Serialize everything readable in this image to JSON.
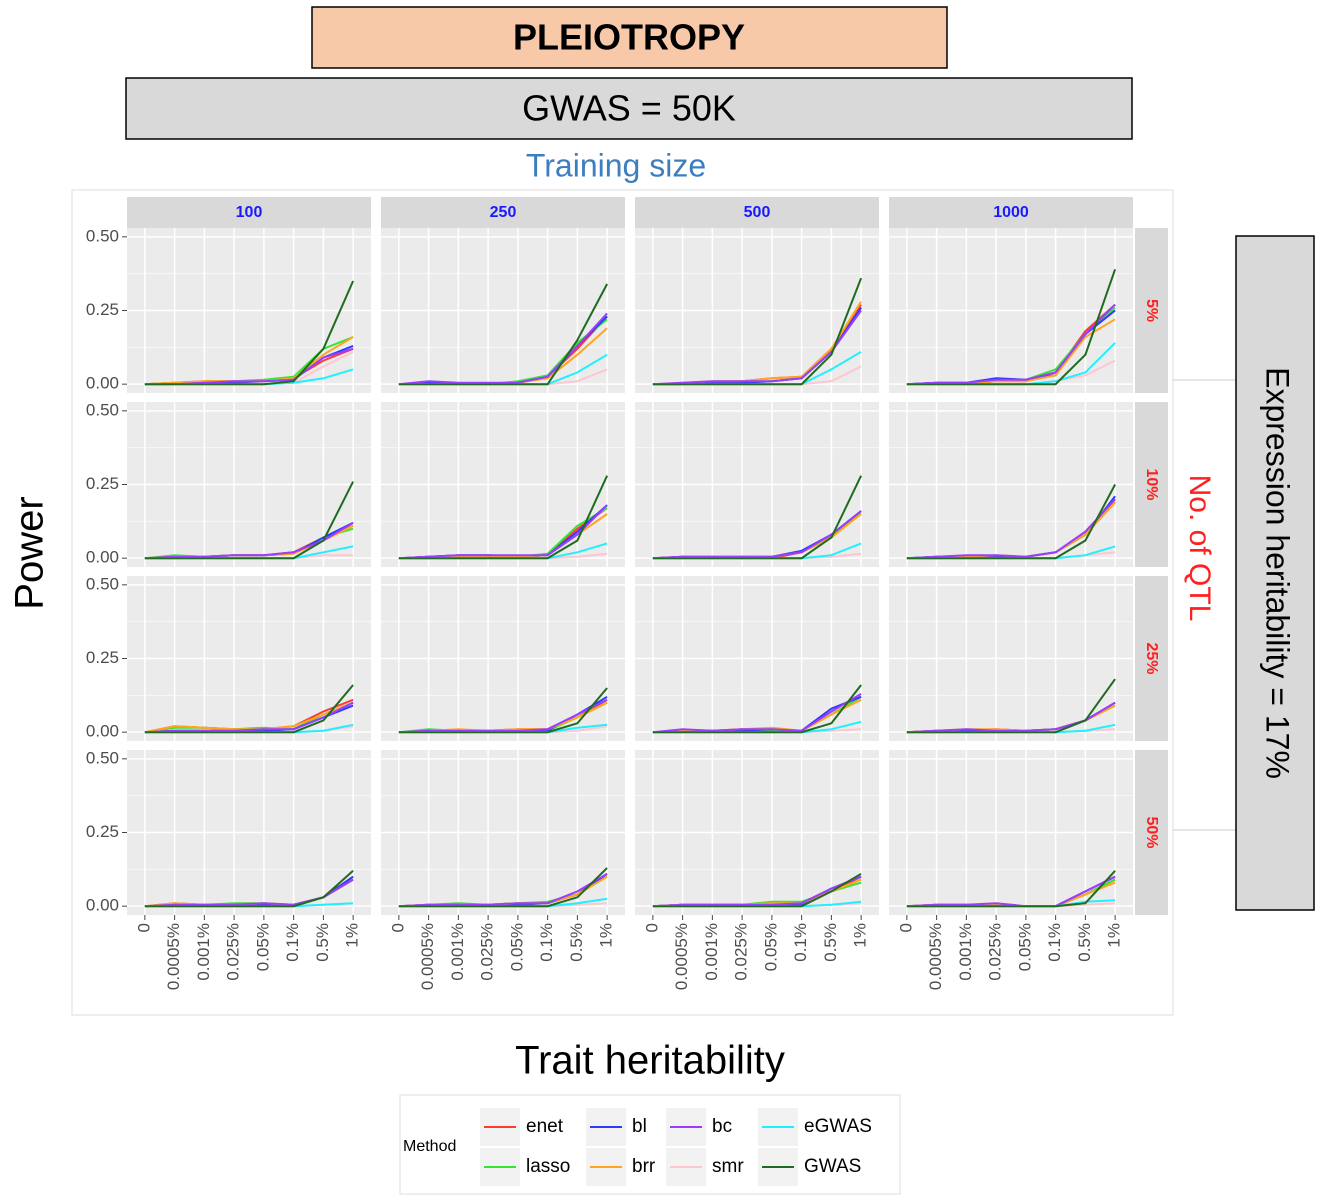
{
  "header": {
    "title": "PLEIOTROPY",
    "subtitle": "GWAS = 50K"
  },
  "chart_data": {
    "type": "line",
    "column_title": "Training size",
    "row_title": "No. of QTL",
    "side_title": "Expression heritability = 17%",
    "y_label": "Power",
    "x_label": "Trait heritability",
    "legend_title": "Method",
    "columns": [
      "100",
      "250",
      "500",
      "1000"
    ],
    "rows": [
      "5%",
      "10%",
      "25%",
      "50%"
    ],
    "categories": [
      "0",
      "0.0005%",
      "0.001%",
      "0.025%",
      "0.05%",
      "0.1%",
      "0.5%",
      "1%"
    ],
    "ylim": [
      -0.03,
      0.53
    ],
    "yticks": [
      {
        "value": 0,
        "label": "0.00"
      },
      {
        "value": 0.25,
        "label": "0.25"
      },
      {
        "value": 0.5,
        "label": "0.50"
      }
    ],
    "grid": true,
    "series": [
      {
        "name": "enet",
        "color": "#ff3b30"
      },
      {
        "name": "lasso",
        "color": "#33e633"
      },
      {
        "name": "bl",
        "color": "#2b3bff"
      },
      {
        "name": "brr",
        "color": "#ffa51f"
      },
      {
        "name": "bc",
        "color": "#9a3dff"
      },
      {
        "name": "smr",
        "color": "#ffc6cf"
      },
      {
        "name": "eGWAS",
        "color": "#1ff0ff"
      },
      {
        "name": "GWAS",
        "color": "#1f6b1f"
      }
    ],
    "panels": [
      [
        [
          0,
          0.005,
          0.01,
          0.01,
          0.01,
          0.02,
          0.08,
          0.12
        ],
        [
          0,
          0.005,
          0.005,
          0.01,
          0.015,
          0.025,
          0.12,
          0.16
        ],
        [
          0,
          0,
          0.005,
          0.005,
          0.01,
          0.015,
          0.09,
          0.13
        ],
        [
          0,
          0.005,
          0.01,
          0.01,
          0.01,
          0.02,
          0.1,
          0.16
        ],
        [
          0,
          0,
          0.005,
          0.01,
          0.01,
          0.015,
          0.09,
          0.12
        ],
        [
          0,
          0,
          0,
          0,
          0,
          0.005,
          0.06,
          0.11
        ],
        [
          0,
          0,
          0,
          0,
          0,
          0.005,
          0.02,
          0.05
        ],
        [
          0,
          0,
          0,
          0,
          0,
          0.01,
          0.12,
          0.35
        ]
      ],
      [
        [
          0,
          0.005,
          0,
          0,
          0.005,
          0.025,
          0.12,
          0.23
        ],
        [
          0,
          0,
          0,
          0,
          0.01,
          0.03,
          0.14,
          0.22
        ],
        [
          0,
          0.005,
          0,
          0,
          0.005,
          0.025,
          0.13,
          0.23
        ],
        [
          0,
          0,
          0,
          0,
          0.005,
          0.02,
          0.1,
          0.19
        ],
        [
          0,
          0.01,
          0.005,
          0.005,
          0.005,
          0.025,
          0.13,
          0.24
        ],
        [
          0,
          0,
          0,
          0,
          0,
          0,
          0.01,
          0.05
        ],
        [
          0,
          0,
          0,
          0,
          0,
          0,
          0.04,
          0.1
        ],
        [
          0,
          0,
          0,
          0,
          0,
          0,
          0.15,
          0.34
        ]
      ],
      [
        [
          0,
          0,
          0.005,
          0.01,
          0.02,
          0.025,
          0.12,
          0.27
        ],
        [
          0,
          0,
          0,
          0.005,
          0.01,
          0.02,
          0.11,
          0.26
        ],
        [
          0,
          0,
          0.005,
          0.005,
          0.01,
          0.02,
          0.11,
          0.26
        ],
        [
          0,
          0.005,
          0.01,
          0.01,
          0.02,
          0.025,
          0.12,
          0.28
        ],
        [
          0,
          0.005,
          0.01,
          0.01,
          0.01,
          0.02,
          0.11,
          0.25
        ],
        [
          0,
          0,
          0,
          0,
          0,
          0,
          0.01,
          0.06
        ],
        [
          0,
          0,
          0,
          0,
          0,
          0,
          0.05,
          0.11
        ],
        [
          0,
          0,
          0,
          0,
          0,
          0,
          0.1,
          0.36
        ]
      ],
      [
        [
          0,
          0,
          0,
          0.01,
          0.01,
          0.04,
          0.18,
          0.27
        ],
        [
          0,
          0.005,
          0.005,
          0.01,
          0.015,
          0.05,
          0.17,
          0.26
        ],
        [
          0,
          0.005,
          0.005,
          0.02,
          0.015,
          0.03,
          0.17,
          0.25
        ],
        [
          0,
          0,
          0.005,
          0.01,
          0.01,
          0.03,
          0.16,
          0.22
        ],
        [
          0,
          0.005,
          0.005,
          0.015,
          0.015,
          0.04,
          0.17,
          0.27
        ],
        [
          0,
          0,
          0,
          0,
          0,
          0.01,
          0.03,
          0.08
        ],
        [
          0,
          0,
          0,
          0,
          0,
          0.01,
          0.04,
          0.14
        ],
        [
          0,
          0,
          0,
          0,
          0,
          0,
          0.1,
          0.39
        ]
      ],
      [
        [
          0,
          0.005,
          0.005,
          0.01,
          0.01,
          0.02,
          0.07,
          0.11
        ],
        [
          0,
          0.01,
          0.005,
          0.01,
          0.01,
          0.015,
          0.07,
          0.1
        ],
        [
          0,
          0,
          0.005,
          0.01,
          0.01,
          0.015,
          0.07,
          0.12
        ],
        [
          0,
          0.005,
          0.005,
          0.01,
          0.01,
          0.015,
          0.06,
          0.11
        ],
        [
          0,
          0.005,
          0.005,
          0.01,
          0.01,
          0.02,
          0.06,
          0.12
        ],
        [
          0,
          0,
          0,
          0,
          0,
          0,
          0.01,
          0.01
        ],
        [
          0,
          0,
          0,
          0,
          0,
          0,
          0.02,
          0.04
        ],
        [
          0,
          0,
          0,
          0,
          0,
          0,
          0.06,
          0.26
        ]
      ],
      [
        [
          0,
          0.005,
          0.005,
          0.01,
          0.005,
          0.01,
          0.1,
          0.17
        ],
        [
          0,
          0,
          0.005,
          0.005,
          0.005,
          0.015,
          0.11,
          0.17
        ],
        [
          0,
          0.005,
          0.01,
          0.01,
          0.005,
          0.01,
          0.09,
          0.18
        ],
        [
          0,
          0,
          0.005,
          0.005,
          0.005,
          0.01,
          0.08,
          0.15
        ],
        [
          0,
          0.005,
          0.01,
          0.01,
          0.01,
          0.01,
          0.08,
          0.18
        ],
        [
          0,
          0,
          0,
          0,
          0,
          0,
          0.005,
          0.015
        ],
        [
          0,
          0,
          0,
          0,
          0,
          0,
          0.02,
          0.05
        ],
        [
          0,
          0,
          0,
          0,
          0,
          0,
          0.06,
          0.28
        ]
      ],
      [
        [
          0,
          0.005,
          0,
          0.005,
          0,
          0.02,
          0.08,
          0.15
        ],
        [
          0,
          0,
          0.005,
          0,
          0.005,
          0.02,
          0.07,
          0.16
        ],
        [
          0,
          0.005,
          0.005,
          0.005,
          0.005,
          0.025,
          0.08,
          0.16
        ],
        [
          0,
          0,
          0.005,
          0.005,
          0.005,
          0.02,
          0.07,
          0.15
        ],
        [
          0,
          0.005,
          0.005,
          0.005,
          0.005,
          0.02,
          0.08,
          0.16
        ],
        [
          0,
          0,
          0,
          0,
          0,
          0,
          0.005,
          0.015
        ],
        [
          0,
          0,
          0,
          0,
          0,
          0,
          0.01,
          0.05
        ],
        [
          0,
          0,
          0,
          0,
          0,
          0,
          0.07,
          0.28
        ]
      ],
      [
        [
          0,
          0,
          0.005,
          0.005,
          0.005,
          0.02,
          0.08,
          0.19
        ],
        [
          0,
          0.005,
          0.005,
          0.005,
          0.005,
          0.02,
          0.08,
          0.2
        ],
        [
          0,
          0.005,
          0.005,
          0.005,
          0.005,
          0.02,
          0.08,
          0.21
        ],
        [
          0,
          0,
          0.005,
          0.01,
          0.005,
          0.02,
          0.08,
          0.19
        ],
        [
          0,
          0.005,
          0.01,
          0.01,
          0.005,
          0.02,
          0.09,
          0.2
        ],
        [
          0,
          0,
          0,
          0,
          0,
          0,
          0.01,
          0.02
        ],
        [
          0,
          0,
          0,
          0,
          0,
          0,
          0.01,
          0.04
        ],
        [
          0,
          0,
          0,
          0,
          0,
          0,
          0.06,
          0.25
        ]
      ],
      [
        [
          0,
          0.02,
          0.015,
          0.01,
          0.01,
          0.02,
          0.07,
          0.11
        ],
        [
          0,
          0.015,
          0.015,
          0.01,
          0.015,
          0.01,
          0.06,
          0.1
        ],
        [
          0,
          0.005,
          0.005,
          0.005,
          0.005,
          0.01,
          0.05,
          0.09
        ],
        [
          0,
          0.02,
          0.015,
          0.01,
          0.01,
          0.02,
          0.06,
          0.1
        ],
        [
          0,
          0.005,
          0.005,
          0.005,
          0.01,
          0.01,
          0.05,
          0.1
        ],
        [
          0,
          0,
          0,
          0,
          0,
          0,
          0.005,
          0.02
        ],
        [
          0,
          0,
          0,
          0,
          0,
          0,
          0.005,
          0.025
        ],
        [
          0,
          0,
          0,
          0,
          0,
          0,
          0.04,
          0.16
        ]
      ],
      [
        [
          0,
          0.005,
          0.005,
          0.005,
          0.01,
          0.01,
          0.05,
          0.11
        ],
        [
          0,
          0.01,
          0.005,
          0.005,
          0.005,
          0.005,
          0.05,
          0.1
        ],
        [
          0,
          0.005,
          0.005,
          0,
          0.005,
          0.005,
          0.06,
          0.12
        ],
        [
          0,
          0.005,
          0.01,
          0.005,
          0.01,
          0.01,
          0.05,
          0.1
        ],
        [
          0,
          0.005,
          0.005,
          0.005,
          0.005,
          0.01,
          0.06,
          0.11
        ],
        [
          0,
          0,
          0,
          0,
          0,
          0,
          0.005,
          0.02
        ],
        [
          0,
          0,
          0,
          0,
          0,
          0,
          0.015,
          0.025
        ],
        [
          0,
          0,
          0,
          0,
          0,
          0,
          0.03,
          0.15
        ]
      ],
      [
        [
          0,
          0.005,
          0.005,
          0.01,
          0.01,
          0.005,
          0.06,
          0.12
        ],
        [
          0,
          0.005,
          0,
          0.005,
          0.005,
          0.005,
          0.06,
          0.12
        ],
        [
          0,
          0.005,
          0.005,
          0.005,
          0.01,
          0.005,
          0.08,
          0.12
        ],
        [
          0,
          0.005,
          0.005,
          0.01,
          0.015,
          0.005,
          0.06,
          0.11
        ],
        [
          0,
          0.01,
          0.005,
          0.01,
          0.01,
          0.005,
          0.07,
          0.13
        ],
        [
          0,
          0,
          0,
          0,
          0,
          0,
          0.005,
          0.01
        ],
        [
          0,
          0,
          0,
          0,
          0,
          0,
          0.01,
          0.035
        ],
        [
          0,
          0,
          0,
          0,
          0,
          0,
          0.03,
          0.16
        ]
      ],
      [
        [
          0,
          0.005,
          0.005,
          0.01,
          0.005,
          0.01,
          0.04,
          0.1
        ],
        [
          0,
          0,
          0.005,
          0.005,
          0.005,
          0.01,
          0.04,
          0.09
        ],
        [
          0,
          0.005,
          0.005,
          0.005,
          0.005,
          0.01,
          0.04,
          0.1
        ],
        [
          0,
          0.005,
          0.01,
          0.01,
          0.005,
          0.01,
          0.04,
          0.09
        ],
        [
          0,
          0.005,
          0.01,
          0.005,
          0.005,
          0.01,
          0.04,
          0.1
        ],
        [
          0,
          0,
          0,
          0,
          0,
          0,
          0.005,
          0.01
        ],
        [
          0,
          0,
          0,
          0,
          0,
          0,
          0.005,
          0.025
        ],
        [
          0,
          0,
          0,
          0,
          0,
          0,
          0.04,
          0.18
        ]
      ],
      [
        [
          0,
          0.01,
          0.005,
          0.005,
          0.005,
          0.005,
          0.03,
          0.1
        ],
        [
          0,
          0.005,
          0.005,
          0.01,
          0.01,
          0.005,
          0.03,
          0.09
        ],
        [
          0,
          0.005,
          0.005,
          0.005,
          0.005,
          0.005,
          0.03,
          0.1
        ],
        [
          0,
          0.01,
          0.005,
          0.005,
          0.01,
          0.005,
          0.03,
          0.09
        ],
        [
          0,
          0.005,
          0.005,
          0.005,
          0.01,
          0.005,
          0.03,
          0.09
        ],
        [
          0,
          0,
          0,
          0,
          0,
          0,
          0.005,
          0.01
        ],
        [
          0,
          0,
          0,
          0,
          0,
          0,
          0.005,
          0.01
        ],
        [
          0,
          0,
          0,
          0,
          0,
          0,
          0.03,
          0.12
        ]
      ],
      [
        [
          0,
          0.005,
          0.005,
          0.005,
          0.01,
          0.01,
          0.04,
          0.11
        ],
        [
          0,
          0.005,
          0.01,
          0.005,
          0.01,
          0.015,
          0.04,
          0.1
        ],
        [
          0,
          0.005,
          0.005,
          0.005,
          0.005,
          0.01,
          0.04,
          0.11
        ],
        [
          0,
          0.005,
          0.005,
          0.005,
          0.01,
          0.01,
          0.04,
          0.1
        ],
        [
          0,
          0.005,
          0.005,
          0.005,
          0.01,
          0.01,
          0.05,
          0.11
        ],
        [
          0,
          0,
          0,
          0,
          0,
          0,
          0.005,
          0.01
        ],
        [
          0,
          0,
          0,
          0,
          0,
          0,
          0.01,
          0.025
        ],
        [
          0,
          0,
          0,
          0,
          0,
          0,
          0.03,
          0.13
        ]
      ],
      [
        [
          0,
          0.005,
          0.005,
          0.005,
          0.01,
          0.01,
          0.05,
          0.1
        ],
        [
          0,
          0.005,
          0.005,
          0.005,
          0.015,
          0.015,
          0.05,
          0.08
        ],
        [
          0,
          0.005,
          0.005,
          0.005,
          0.005,
          0.005,
          0.06,
          0.1
        ],
        [
          0,
          0.005,
          0.005,
          0.005,
          0.01,
          0.01,
          0.05,
          0.09
        ],
        [
          0,
          0.005,
          0.005,
          0.005,
          0.005,
          0.01,
          0.06,
          0.1
        ],
        [
          0,
          0,
          0,
          0,
          0,
          0,
          0.005,
          0.01
        ],
        [
          0,
          0,
          0,
          0,
          0,
          0,
          0.005,
          0.015
        ],
        [
          0,
          0,
          0,
          0,
          0,
          0,
          0.05,
          0.11
        ]
      ],
      [
        [
          0,
          0.005,
          0.005,
          0.005,
          0,
          0,
          0.04,
          0.09
        ],
        [
          0,
          0,
          0.005,
          0.005,
          0,
          0,
          0.04,
          0.09
        ],
        [
          0,
          0.005,
          0.005,
          0.005,
          0,
          0,
          0.05,
          0.1
        ],
        [
          0,
          0.005,
          0.005,
          0.005,
          0,
          0,
          0.04,
          0.08
        ],
        [
          0,
          0.005,
          0.005,
          0.01,
          0,
          0,
          0.05,
          0.1
        ],
        [
          0,
          0,
          0,
          0,
          0,
          0,
          0.005,
          0.01
        ],
        [
          0,
          0,
          0,
          0,
          0,
          0,
          0.015,
          0.02
        ],
        [
          0,
          0,
          0,
          0,
          0,
          0,
          0.01,
          0.12
        ]
      ]
    ]
  }
}
